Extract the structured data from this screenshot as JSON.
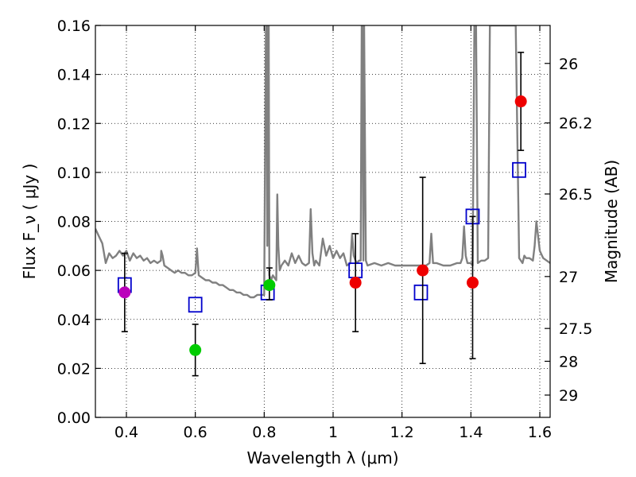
{
  "chart_data": {
    "type": "scatter",
    "title": "",
    "xlabel": "Wavelength  λ (μm)",
    "ylabel": "Flux  F_ν  ( μJy )",
    "y2label": "Magnitude (AB)",
    "xlim": [
      0.31,
      1.63
    ],
    "ylim": [
      0.0,
      0.16
    ],
    "grid": true,
    "grid_style": "dotted",
    "x_ticks": [
      0.4,
      0.6,
      0.8,
      1.0,
      1.2,
      1.4,
      1.6
    ],
    "x_tick_labels": [
      "0.4",
      "0.6",
      "0.8",
      "1",
      "1.2",
      "1.4",
      "1.6"
    ],
    "y_ticks": [
      0.0,
      0.02,
      0.04,
      0.06,
      0.08,
      0.1,
      0.12,
      0.14,
      0.16
    ],
    "y_tick_labels": [
      "0.00",
      "0.02",
      "0.04",
      "0.06",
      "0.08",
      "0.10",
      "0.12",
      "0.14",
      "0.16"
    ],
    "y2_ticks": [
      {
        "label": "26",
        "flux": 0.1445
      },
      {
        "label": "26.2",
        "flux": 0.1202
      },
      {
        "label": "26.5",
        "flux": 0.0912
      },
      {
        "label": "27",
        "flux": 0.0575
      },
      {
        "label": "27.5",
        "flux": 0.0363
      },
      {
        "label": "28",
        "flux": 0.0229
      },
      {
        "label": "29",
        "flux": 0.0091
      }
    ],
    "colors": {
      "spectrum": "#808080",
      "model": "#0000cc",
      "red": "#ee0000",
      "green": "#00cc00",
      "magenta": "#bb00bb",
      "errorbar": "#000000"
    },
    "spectrum": {
      "x": [
        0.31,
        0.32,
        0.33,
        0.34,
        0.35,
        0.36,
        0.37,
        0.38,
        0.39,
        0.4,
        0.41,
        0.42,
        0.43,
        0.44,
        0.45,
        0.46,
        0.47,
        0.48,
        0.49,
        0.5,
        0.501,
        0.505,
        0.51,
        0.52,
        0.53,
        0.54,
        0.55,
        0.56,
        0.57,
        0.58,
        0.59,
        0.6,
        0.605,
        0.607,
        0.61,
        0.62,
        0.63,
        0.64,
        0.65,
        0.66,
        0.67,
        0.68,
        0.69,
        0.7,
        0.71,
        0.72,
        0.73,
        0.74,
        0.75,
        0.76,
        0.77,
        0.78,
        0.79,
        0.8,
        0.805,
        0.807,
        0.809,
        0.811,
        0.813,
        0.815,
        0.82,
        0.825,
        0.83,
        0.835,
        0.838,
        0.841,
        0.845,
        0.85,
        0.86,
        0.87,
        0.88,
        0.89,
        0.9,
        0.91,
        0.92,
        0.93,
        0.935,
        0.94,
        0.945,
        0.95,
        0.96,
        0.97,
        0.98,
        0.99,
        1.0,
        1.01,
        1.02,
        1.03,
        1.04,
        1.05,
        1.055,
        1.06,
        1.065,
        1.07,
        1.075,
        1.08,
        1.083,
        1.085,
        1.088,
        1.09,
        1.095,
        1.1,
        1.12,
        1.14,
        1.16,
        1.18,
        1.2,
        1.22,
        1.24,
        1.26,
        1.27,
        1.28,
        1.285,
        1.29,
        1.3,
        1.32,
        1.34,
        1.36,
        1.37,
        1.375,
        1.38,
        1.385,
        1.39,
        1.4,
        1.405,
        1.41,
        1.415,
        1.42,
        1.43,
        1.44,
        1.45,
        1.455,
        1.46,
        1.48,
        1.5,
        1.52,
        1.53,
        1.54,
        1.545,
        1.55,
        1.555,
        1.56,
        1.57,
        1.58,
        1.585,
        1.59,
        1.6,
        1.61,
        1.62,
        1.63
      ],
      "y": [
        0.077,
        0.074,
        0.071,
        0.063,
        0.067,
        0.065,
        0.066,
        0.068,
        0.066,
        0.068,
        0.064,
        0.067,
        0.065,
        0.066,
        0.064,
        0.065,
        0.063,
        0.064,
        0.063,
        0.064,
        0.068,
        0.066,
        0.062,
        0.061,
        0.06,
        0.059,
        0.06,
        0.059,
        0.059,
        0.058,
        0.058,
        0.059,
        0.069,
        0.064,
        0.058,
        0.057,
        0.056,
        0.056,
        0.055,
        0.055,
        0.054,
        0.054,
        0.053,
        0.052,
        0.052,
        0.051,
        0.051,
        0.05,
        0.05,
        0.049,
        0.049,
        0.05,
        0.05,
        0.05,
        0.16,
        0.16,
        0.07,
        0.16,
        0.16,
        0.058,
        0.056,
        0.058,
        0.057,
        0.056,
        0.091,
        0.07,
        0.06,
        0.062,
        0.064,
        0.062,
        0.067,
        0.063,
        0.066,
        0.063,
        0.062,
        0.063,
        0.085,
        0.067,
        0.062,
        0.064,
        0.062,
        0.073,
        0.066,
        0.07,
        0.065,
        0.068,
        0.065,
        0.067,
        0.062,
        0.063,
        0.075,
        0.066,
        0.064,
        0.063,
        0.064,
        0.064,
        0.16,
        0.16,
        0.064,
        0.16,
        0.064,
        0.062,
        0.063,
        0.062,
        0.063,
        0.062,
        0.062,
        0.062,
        0.062,
        0.062,
        0.062,
        0.063,
        0.075,
        0.063,
        0.063,
        0.062,
        0.062,
        0.063,
        0.063,
        0.065,
        0.078,
        0.066,
        0.063,
        0.063,
        0.062,
        0.16,
        0.16,
        0.063,
        0.064,
        0.064,
        0.065,
        0.16,
        0.16,
        0.16,
        0.16,
        0.16,
        0.16,
        0.065,
        0.064,
        0.063,
        0.066,
        0.065,
        0.065,
        0.064,
        0.07,
        0.08,
        0.068,
        0.065,
        0.064,
        0.063
      ]
    },
    "model_points": {
      "x": [
        0.395,
        0.6,
        0.81,
        1.065,
        1.255,
        1.405,
        1.54
      ],
      "y": [
        0.054,
        0.046,
        0.051,
        0.06,
        0.051,
        0.082,
        0.101
      ]
    },
    "observed_points": [
      {
        "x": 0.395,
        "y": 0.051,
        "yerr_low": 0.035,
        "yerr_high": 0.067,
        "color": "magenta"
      },
      {
        "x": 0.6,
        "y": 0.0275,
        "yerr_low": 0.017,
        "yerr_high": 0.038,
        "color": "green"
      },
      {
        "x": 0.815,
        "y": 0.054,
        "yerr_low": 0.048,
        "yerr_high": 0.061,
        "color": "green"
      },
      {
        "x": 1.065,
        "y": 0.055,
        "yerr_low": 0.035,
        "yerr_high": 0.075,
        "color": "red"
      },
      {
        "x": 1.26,
        "y": 0.06,
        "yerr_low": 0.022,
        "yerr_high": 0.098,
        "color": "red"
      },
      {
        "x": 1.405,
        "y": 0.055,
        "yerr_low": 0.024,
        "yerr_high": 0.082,
        "color": "red"
      },
      {
        "x": 1.545,
        "y": 0.129,
        "yerr_low": 0.109,
        "yerr_high": 0.149,
        "color": "red"
      }
    ]
  }
}
